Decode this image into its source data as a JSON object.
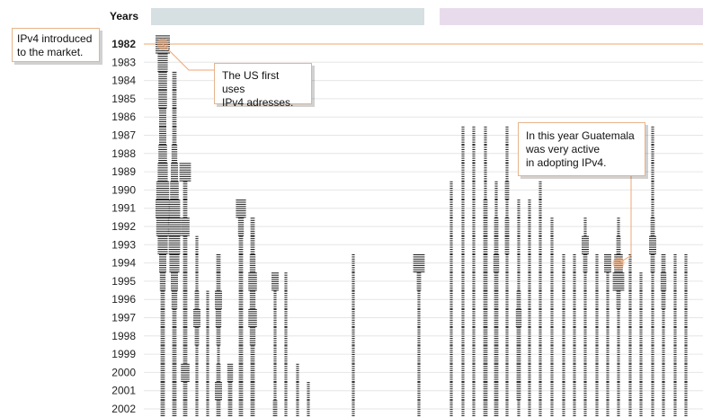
{
  "chart_data": {
    "type": "dot-strip",
    "axis_title": "Years",
    "years": [
      1982,
      1983,
      1984,
      1985,
      1986,
      1987,
      1988,
      1989,
      1990,
      1991,
      1992,
      1993,
      1994,
      1995,
      1996,
      1997,
      1998,
      1999,
      2000,
      2001,
      2002
    ],
    "highlight_year": 1982,
    "annotations": [
      {
        "id": "ipv4-intro",
        "text": "IPv4 introduced\nto the market.",
        "year": 1982
      },
      {
        "id": "us-first",
        "text": "The US first uses\nIPv4 adresses.",
        "year": 1982
      },
      {
        "id": "guatemala",
        "text": "In this year Guatemala\nwas very active\nin adopting IPv4.",
        "year": 1994
      }
    ],
    "columns": [
      {
        "start": 1982,
        "intensity": [
          10,
          7,
          6,
          6,
          5,
          5,
          6,
          7,
          9,
          10,
          9,
          7,
          5,
          4,
          3,
          3,
          3,
          3,
          3,
          3,
          3
        ]
      },
      {
        "start": 1984,
        "intensity": [
          3,
          3,
          3,
          3,
          4,
          5,
          6,
          8,
          9,
          8,
          7,
          5,
          4,
          3,
          3,
          3,
          3,
          3,
          3
        ]
      },
      {
        "start": 1989,
        "intensity": [
          8,
          3,
          3,
          6,
          3,
          3,
          3,
          3,
          3,
          3,
          3,
          6,
          3,
          3
        ]
      },
      {
        "start": 1993,
        "intensity": [
          2,
          2,
          2,
          3,
          5,
          3,
          2,
          2,
          2,
          2
        ]
      },
      {
        "start": 1996,
        "intensity": [
          2,
          2,
          2,
          2,
          2,
          2,
          2
        ]
      },
      {
        "start": 1994,
        "intensity": [
          3,
          3,
          5,
          4,
          3,
          2,
          3,
          5,
          3
        ]
      },
      {
        "start": 2000,
        "intensity": [
          4,
          3,
          3
        ]
      },
      {
        "start": 1991,
        "intensity": [
          7,
          4,
          3,
          3,
          3,
          3,
          3,
          3,
          3,
          3,
          3,
          3
        ]
      },
      {
        "start": 1992,
        "intensity": [
          3,
          3,
          4,
          6,
          4,
          6,
          4,
          3,
          3,
          3,
          3
        ]
      },
      {
        "start": 1995,
        "intensity": [
          5,
          2,
          2,
          2,
          2,
          2,
          2,
          3
        ]
      },
      {
        "start": 1995,
        "intensity": [
          2,
          2,
          2,
          2,
          2,
          2,
          2,
          2
        ]
      },
      {
        "start": 2000,
        "intensity": [
          2,
          2,
          2
        ]
      },
      {
        "start": 2001,
        "intensity": [
          2,
          2
        ]
      },
      {
        "start": 1994,
        "intensity": [
          2,
          2,
          2,
          2,
          2,
          2,
          2,
          2,
          2
        ]
      },
      {
        "start": 1994,
        "intensity": [
          8,
          3,
          2,
          2,
          2,
          2,
          2,
          2,
          2
        ]
      },
      {
        "start": 1990,
        "intensity": [
          2,
          2,
          2,
          2,
          2,
          2,
          2,
          2,
          2,
          2,
          2,
          2,
          2
        ]
      },
      {
        "start": 1987,
        "intensity": [
          2,
          2,
          2,
          2,
          2,
          2,
          2,
          2,
          2,
          2,
          2,
          2,
          2,
          2,
          2,
          2
        ]
      },
      {
        "start": 1987,
        "intensity": [
          2,
          2,
          2,
          2,
          2,
          2,
          2,
          2,
          2,
          2,
          2,
          2,
          2,
          2,
          2,
          2
        ]
      },
      {
        "start": 1987,
        "intensity": [
          2,
          2,
          2,
          2,
          3,
          3,
          3,
          3,
          3,
          3,
          3,
          3,
          3,
          3,
          3,
          3
        ]
      },
      {
        "start": 1990,
        "intensity": [
          2,
          2,
          3,
          3,
          4,
          3,
          3,
          3,
          3,
          3,
          3,
          3,
          3
        ]
      },
      {
        "start": 1987,
        "intensity": [
          2,
          2,
          2,
          3,
          2,
          3,
          3,
          2,
          2,
          2,
          2,
          2,
          2,
          2,
          2,
          2
        ]
      },
      {
        "start": 1991,
        "intensity": [
          2,
          2,
          2,
          2,
          2,
          3,
          4,
          3,
          3,
          3,
          3,
          2
        ]
      },
      {
        "start": 1991,
        "intensity": [
          2,
          2,
          2,
          2,
          2,
          2,
          2,
          2,
          2,
          2,
          2,
          2
        ]
      },
      {
        "start": 1990,
        "intensity": [
          2,
          2,
          2,
          2,
          2,
          2,
          2,
          2,
          2,
          2,
          2,
          2,
          2
        ]
      },
      {
        "start": 1992,
        "intensity": [
          2,
          2,
          2,
          2,
          2,
          2,
          2,
          2,
          2,
          2,
          2
        ]
      },
      {
        "start": 1994,
        "intensity": [
          2,
          2,
          2,
          2,
          2,
          2,
          2,
          2,
          2
        ]
      },
      {
        "start": 1994,
        "intensity": [
          2,
          2,
          2,
          2,
          2,
          2,
          2,
          2,
          2
        ]
      },
      {
        "start": 1992,
        "intensity": [
          2,
          5,
          3,
          2,
          2,
          2,
          2,
          2,
          2,
          2,
          2
        ]
      },
      {
        "start": 1994,
        "intensity": [
          2,
          2,
          2,
          2,
          2,
          2,
          2,
          2,
          2
        ]
      },
      {
        "start": 1994,
        "intensity": [
          5,
          2,
          2,
          2,
          2,
          2,
          2,
          2,
          2
        ]
      },
      {
        "start": 1992,
        "intensity": [
          2,
          3,
          6,
          8,
          3,
          2,
          2,
          2,
          2,
          2,
          2
        ]
      },
      {
        "start": 1994,
        "intensity": [
          2,
          2,
          2,
          2,
          2,
          2,
          2,
          2,
          2
        ]
      },
      {
        "start": 1995,
        "intensity": [
          2,
          2,
          2,
          2,
          2,
          2,
          2,
          2
        ]
      },
      {
        "start": 1987,
        "intensity": [
          2,
          2,
          2,
          2,
          2,
          3,
          5,
          3,
          2,
          2,
          2,
          2,
          2,
          2,
          2,
          2
        ]
      },
      {
        "start": 1994,
        "intensity": [
          3,
          4,
          3,
          2,
          2,
          2,
          2,
          2,
          2
        ]
      },
      {
        "start": 1994,
        "intensity": [
          2,
          2,
          2,
          2,
          2,
          2,
          2,
          2,
          2
        ]
      },
      {
        "start": 1994,
        "intensity": [
          2,
          2,
          2,
          2,
          2,
          2,
          2,
          2,
          2
        ]
      }
    ],
    "colors": {
      "band_left": "#d6dfe2",
      "band_right": "#e8dcec",
      "highlight": "#f0a672",
      "grid": "#e6e6e6",
      "marker": "#1a1a1a"
    }
  }
}
